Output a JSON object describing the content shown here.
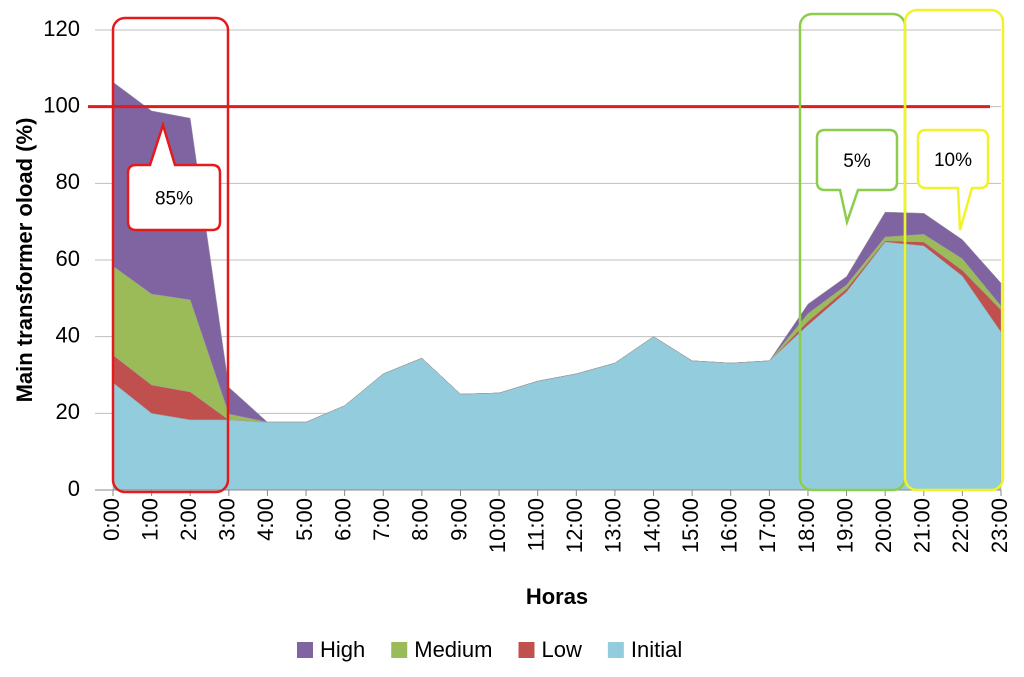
{
  "chart_data": {
    "type": "stacked_area",
    "y_label": "Main transformer oload  (%)",
    "x_label": "Horas",
    "categories": [
      "0:00",
      "1:00",
      "2:00",
      "3:00",
      "4:00",
      "5:00",
      "6:00",
      "7:00",
      "8:00",
      "9:00",
      "10:00",
      "11:00",
      "12:00",
      "13:00",
      "14:00",
      "15:00",
      "16:00",
      "17:00",
      "18:00",
      "19:00",
      "20:00",
      "21:00",
      "22:00",
      "23:00"
    ],
    "series": [
      {
        "name": "High",
        "color": "#8064a2",
        "values": [
          48,
          47.8,
          47.4,
          7,
          0,
          0,
          0,
          0,
          0,
          0,
          0,
          0,
          0,
          0,
          0,
          0,
          0,
          0,
          2.5,
          2.2,
          6.5,
          5.5,
          5,
          6
        ]
      },
      {
        "name": "Medium",
        "color": "#9bbb59",
        "values": [
          23.2,
          23.7,
          24,
          1.5,
          0,
          0,
          0,
          0,
          0,
          0,
          0,
          0,
          0,
          0,
          0,
          0,
          0,
          0,
          2,
          1,
          1,
          2,
          3,
          1
        ]
      },
      {
        "name": "Low",
        "color": "#c0504d",
        "values": [
          7.2,
          7.4,
          7.3,
          0,
          0,
          0,
          0,
          0,
          0,
          0,
          0,
          0,
          0,
          0,
          0,
          0,
          0,
          0,
          1,
          0.8,
          0.3,
          1,
          1.5,
          5.8
        ]
      },
      {
        "name": "Initial",
        "color": "#93cddd",
        "values": [
          28,
          20,
          18.3,
          18.3,
          17.7,
          17.7,
          22,
          30.3,
          34.4,
          25,
          25.3,
          28.4,
          30.3,
          33.1,
          40,
          33.7,
          33.1,
          33.7,
          43,
          51.7,
          64.7,
          63.7,
          55.8,
          41.2
        ]
      }
    ],
    "threshold": 100,
    "ylim": [
      0,
      120
    ],
    "yticks": [
      0,
      20,
      40,
      60,
      80,
      100,
      120
    ],
    "grid": true,
    "annotations": [
      {
        "text": "85%"
      },
      {
        "text": "5%"
      },
      {
        "text": "10%"
      }
    ]
  }
}
